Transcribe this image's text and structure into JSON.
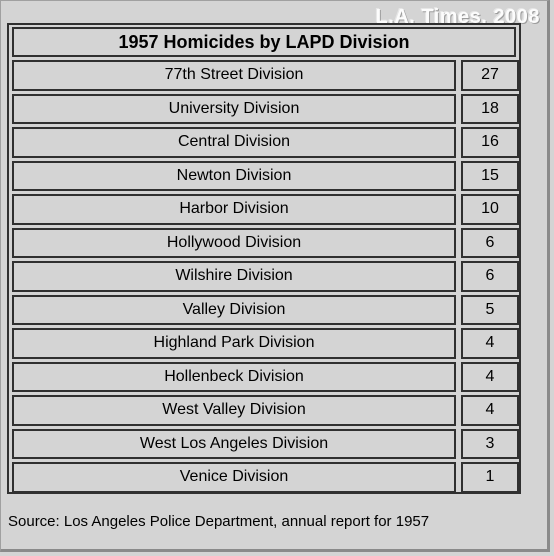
{
  "watermark": "L.A. Times, 2008",
  "source": "Source: Los Angeles Police Department, annual report for 1957",
  "chart_data": {
    "type": "table",
    "title": "1957 Homicides by LAPD Division",
    "rows": [
      {
        "label": "77th Street Division",
        "value": "27"
      },
      {
        "label": "University Division",
        "value": "18"
      },
      {
        "label": "Central Division",
        "value": "16"
      },
      {
        "label": "Newton Division",
        "value": "15"
      },
      {
        "label": "Harbor Division",
        "value": "10"
      },
      {
        "label": "Hollywood Division",
        "value": "6"
      },
      {
        "label": "Wilshire Division",
        "value": "6"
      },
      {
        "label": "Valley Division",
        "value": "5"
      },
      {
        "label": "Highland Park Division",
        "value": "4"
      },
      {
        "label": "Hollenbeck Division",
        "value": "4"
      },
      {
        "label": "West Valley Division",
        "value": "4"
      },
      {
        "label": "West Los Angeles Division",
        "value": "3"
      },
      {
        "label": "Venice Division",
        "value": "1"
      }
    ]
  }
}
